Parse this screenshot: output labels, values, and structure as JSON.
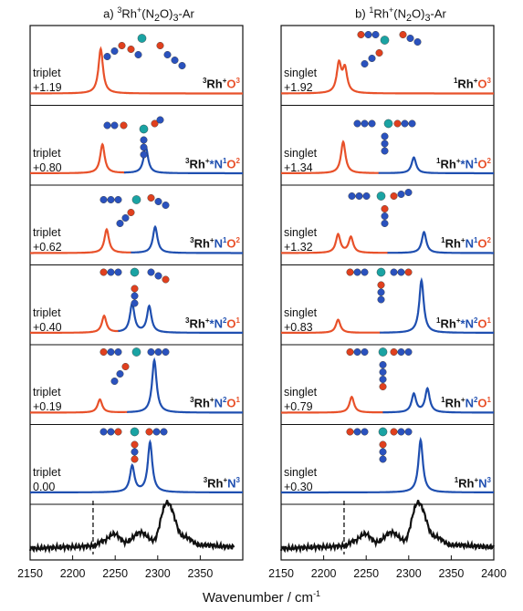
{
  "colors": {
    "orange": "#e8512a",
    "blue": "#1f4fb0",
    "black": "#111111",
    "rh": "#1aa3a3",
    "n_atom": "#2a52be",
    "o_atom": "#e0401e"
  },
  "panels": [
    {
      "title_prefix": "a) ",
      "title_sup": "3",
      "title_main": "Rh",
      "title_rest": "(N",
      "title_sub1": "2",
      "title_mid": "O)",
      "title_sub2": "3",
      "title_end": "-Ar",
      "rows": [
        {
          "state": "triplet",
          "energy": "+1.19",
          "label": {
            "spin": "3",
            "parts": [
              {
                "t": "Rh",
                "c": "k"
              },
              {
                "t": "+",
                "c": "k",
                "sup": true
              },
              {
                "t": "O",
                "c": "o"
              },
              {
                "t": "3",
                "c": "o",
                "sup": true
              }
            ]
          }
        },
        {
          "state": "triplet",
          "energy": "+0.80",
          "label": {
            "spin": "3",
            "parts": [
              {
                "t": "Rh",
                "c": "k"
              },
              {
                "t": "+",
                "c": "k",
                "sup": true
              },
              {
                "t": "*N",
                "c": "n"
              },
              {
                "t": "1",
                "c": "n",
                "sup": true
              },
              {
                "t": "O",
                "c": "o"
              },
              {
                "t": "2",
                "c": "o",
                "sup": true
              }
            ]
          }
        },
        {
          "state": "triplet",
          "energy": "+0.62",
          "label": {
            "spin": "3",
            "parts": [
              {
                "t": "Rh",
                "c": "k"
              },
              {
                "t": "+",
                "c": "k",
                "sup": true
              },
              {
                "t": "N",
                "c": "n"
              },
              {
                "t": "1",
                "c": "n",
                "sup": true
              },
              {
                "t": "O",
                "c": "o"
              },
              {
                "t": "2",
                "c": "o",
                "sup": true
              }
            ]
          }
        },
        {
          "state": "triplet",
          "energy": "+0.40",
          "label": {
            "spin": "3",
            "parts": [
              {
                "t": "Rh",
                "c": "k"
              },
              {
                "t": "+",
                "c": "k",
                "sup": true
              },
              {
                "t": "*N",
                "c": "n"
              },
              {
                "t": "2",
                "c": "n",
                "sup": true
              },
              {
                "t": "O",
                "c": "o"
              },
              {
                "t": "1",
                "c": "o",
                "sup": true
              }
            ]
          }
        },
        {
          "state": "triplet",
          "energy": "+0.19",
          "label": {
            "spin": "3",
            "parts": [
              {
                "t": "Rh",
                "c": "k"
              },
              {
                "t": "+",
                "c": "k",
                "sup": true
              },
              {
                "t": "N",
                "c": "n"
              },
              {
                "t": "2",
                "c": "n",
                "sup": true
              },
              {
                "t": "O",
                "c": "o"
              },
              {
                "t": "1",
                "c": "o",
                "sup": true
              }
            ]
          }
        },
        {
          "state": "triplet",
          "energy": "0.00",
          "label": {
            "spin": "3",
            "parts": [
              {
                "t": "Rh",
                "c": "k"
              },
              {
                "t": "+",
                "c": "k",
                "sup": true
              },
              {
                "t": "N",
                "c": "n"
              },
              {
                "t": "3",
                "c": "n",
                "sup": true
              }
            ]
          }
        }
      ]
    },
    {
      "title_prefix": "b) ",
      "title_sup": "1",
      "title_main": "Rh",
      "title_rest": "(N",
      "title_sub1": "2",
      "title_mid": "O)",
      "title_sub2": "3",
      "title_end": "-Ar",
      "rows": [
        {
          "state": "singlet",
          "energy": "+1.92",
          "label": {
            "spin": "1",
            "parts": [
              {
                "t": "Rh",
                "c": "k"
              },
              {
                "t": "+",
                "c": "k",
                "sup": true
              },
              {
                "t": "O",
                "c": "o"
              },
              {
                "t": "3",
                "c": "o",
                "sup": true
              }
            ]
          }
        },
        {
          "state": "singlet",
          "energy": "+1.34",
          "label": {
            "spin": "1",
            "parts": [
              {
                "t": "Rh",
                "c": "k"
              },
              {
                "t": "+",
                "c": "k",
                "sup": true
              },
              {
                "t": "*N",
                "c": "n"
              },
              {
                "t": "1",
                "c": "n",
                "sup": true
              },
              {
                "t": "O",
                "c": "o"
              },
              {
                "t": "2",
                "c": "o",
                "sup": true
              }
            ]
          }
        },
        {
          "state": "singlet",
          "energy": "+1.32",
          "label": {
            "spin": "1",
            "parts": [
              {
                "t": "Rh",
                "c": "k"
              },
              {
                "t": "+",
                "c": "k",
                "sup": true
              },
              {
                "t": "N",
                "c": "n"
              },
              {
                "t": "1",
                "c": "n",
                "sup": true
              },
              {
                "t": "O",
                "c": "o"
              },
              {
                "t": "2",
                "c": "o",
                "sup": true
              }
            ]
          }
        },
        {
          "state": "singlet",
          "energy": "+0.83",
          "label": {
            "spin": "1",
            "parts": [
              {
                "t": "Rh",
                "c": "k"
              },
              {
                "t": "+",
                "c": "k",
                "sup": true
              },
              {
                "t": "*N",
                "c": "n"
              },
              {
                "t": "2",
                "c": "n",
                "sup": true
              },
              {
                "t": "O",
                "c": "o"
              },
              {
                "t": "1",
                "c": "o",
                "sup": true
              }
            ]
          }
        },
        {
          "state": "singlet",
          "energy": "+0.79",
          "label": {
            "spin": "1",
            "parts": [
              {
                "t": "Rh",
                "c": "k"
              },
              {
                "t": "+",
                "c": "k",
                "sup": true
              },
              {
                "t": "N",
                "c": "n"
              },
              {
                "t": "2",
                "c": "n",
                "sup": true
              },
              {
                "t": "O",
                "c": "o"
              },
              {
                "t": "1",
                "c": "o",
                "sup": true
              }
            ]
          }
        },
        {
          "state": "singlet",
          "energy": "+0.30",
          "label": {
            "spin": "1",
            "parts": [
              {
                "t": "Rh",
                "c": "k"
              },
              {
                "t": "+",
                "c": "k",
                "sup": true
              },
              {
                "t": "N",
                "c": "n"
              },
              {
                "t": "3",
                "c": "n",
                "sup": true
              }
            ]
          }
        }
      ]
    }
  ],
  "x_axis": {
    "label_main": "Wavenumber / cm",
    "label_sup": "-1",
    "ticks_a": [
      "2150",
      "2200",
      "2250",
      "2300",
      "2350"
    ],
    "ticks_b": [
      "2150",
      "2200",
      "2250",
      "2300",
      "2350",
      "2400"
    ]
  },
  "chart_data": {
    "type": "line",
    "xlim": [
      2150,
      2400
    ],
    "xlabel": "Wavenumber / cm-1",
    "dashed_line_x": 2224,
    "panels": [
      {
        "title": "a) 3Rh+(N2O)3-Ar",
        "simulated": [
          {
            "peaks": [
              {
                "x": 2233,
                "h": 0.85,
                "color": "orange"
              }
            ]
          },
          {
            "peaks": [
              {
                "x": 2235,
                "h": 0.55,
                "color": "orange"
              },
              {
                "x": 2286,
                "h": 0.5,
                "color": "blue"
              }
            ]
          },
          {
            "peaks": [
              {
                "x": 2240,
                "h": 0.45,
                "color": "orange"
              },
              {
                "x": 2297,
                "h": 0.5,
                "color": "blue"
              }
            ]
          },
          {
            "peaks": [
              {
                "x": 2237,
                "h": 0.32,
                "color": "orange"
              },
              {
                "x": 2270,
                "h": 0.55,
                "color": "blue"
              },
              {
                "x": 2290,
                "h": 0.5,
                "color": "blue"
              }
            ]
          },
          {
            "peaks": [
              {
                "x": 2232,
                "h": 0.25,
                "color": "orange"
              },
              {
                "x": 2296,
                "h": 1.0,
                "color": "blue"
              }
            ]
          },
          {
            "peaks": [
              {
                "x": 2270,
                "h": 0.5,
                "color": "blue"
              },
              {
                "x": 2291,
                "h": 0.95,
                "color": "blue"
              }
            ]
          }
        ],
        "experimental": [
          {
            "x": 2150,
            "y": 0.05
          },
          {
            "x": 2200,
            "y": 0.08
          },
          {
            "x": 2224,
            "y": 0.1
          },
          {
            "x": 2235,
            "y": 0.2
          },
          {
            "x": 2249,
            "y": 0.35
          },
          {
            "x": 2262,
            "y": 0.18
          },
          {
            "x": 2280,
            "y": 0.38
          },
          {
            "x": 2295,
            "y": 0.22
          },
          {
            "x": 2311,
            "y": 1.0
          },
          {
            "x": 2330,
            "y": 0.3
          },
          {
            "x": 2350,
            "y": 0.12
          },
          {
            "x": 2390,
            "y": 0.08
          }
        ]
      },
      {
        "title": "b) 1Rh+(N2O)3-Ar",
        "simulated": [
          {
            "peaks": [
              {
                "x": 2218,
                "h": 0.55,
                "color": "orange"
              },
              {
                "x": 2225,
                "h": 0.45,
                "color": "orange"
              }
            ]
          },
          {
            "peaks": [
              {
                "x": 2223,
                "h": 0.6,
                "color": "orange"
              },
              {
                "x": 2306,
                "h": 0.3,
                "color": "blue"
              }
            ]
          },
          {
            "peaks": [
              {
                "x": 2217,
                "h": 0.35,
                "color": "orange"
              },
              {
                "x": 2232,
                "h": 0.3,
                "color": "orange"
              },
              {
                "x": 2318,
                "h": 0.4,
                "color": "blue"
              }
            ]
          },
          {
            "peaks": [
              {
                "x": 2217,
                "h": 0.25,
                "color": "orange"
              },
              {
                "x": 2315,
                "h": 1.0,
                "color": "blue"
              }
            ]
          },
          {
            "peaks": [
              {
                "x": 2233,
                "h": 0.3,
                "color": "orange"
              },
              {
                "x": 2306,
                "h": 0.35,
                "color": "blue"
              },
              {
                "x": 2322,
                "h": 0.45,
                "color": "blue"
              }
            ]
          },
          {
            "peaks": [
              {
                "x": 2314,
                "h": 1.0,
                "color": "blue"
              }
            ]
          }
        ],
        "experimental": [
          {
            "x": 2150,
            "y": 0.05
          },
          {
            "x": 2200,
            "y": 0.08
          },
          {
            "x": 2224,
            "y": 0.1
          },
          {
            "x": 2235,
            "y": 0.2
          },
          {
            "x": 2249,
            "y": 0.35
          },
          {
            "x": 2262,
            "y": 0.18
          },
          {
            "x": 2280,
            "y": 0.38
          },
          {
            "x": 2295,
            "y": 0.22
          },
          {
            "x": 2311,
            "y": 1.0
          },
          {
            "x": 2330,
            "y": 0.3
          },
          {
            "x": 2350,
            "y": 0.12
          },
          {
            "x": 2400,
            "y": 0.08
          }
        ]
      }
    ]
  }
}
